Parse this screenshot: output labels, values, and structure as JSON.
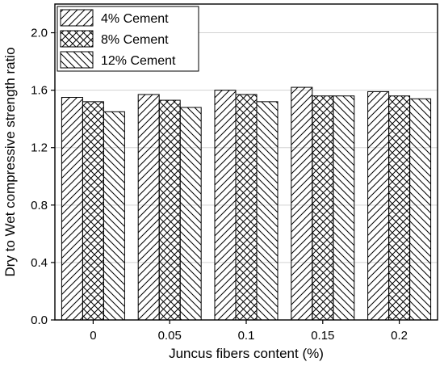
{
  "chart_data": {
    "type": "bar",
    "categories": [
      "0",
      "0.05",
      "0.1",
      "0.15",
      "0.2"
    ],
    "series": [
      {
        "name": "4% Cement",
        "values": [
          1.55,
          1.57,
          1.6,
          1.62,
          1.59
        ],
        "pattern": "diagonal-forward"
      },
      {
        "name": "8% Cement",
        "values": [
          1.52,
          1.53,
          1.57,
          1.56,
          1.56
        ],
        "pattern": "crosshatch"
      },
      {
        "name": "12% Cement",
        "values": [
          1.45,
          1.48,
          1.52,
          1.56,
          1.54
        ],
        "pattern": "diagonal-back"
      }
    ],
    "xlabel": "Juncus fibers content (%)",
    "ylabel": "Dry to Wet compressive strength ratio",
    "ylim": [
      0,
      2.2
    ],
    "yticks": [
      "0.0",
      "0.4",
      "0.8",
      "1.2",
      "1.6",
      "2.0"
    ],
    "grid": "horizontal",
    "legend_position": "top-left",
    "colors": {
      "stroke": "#000000",
      "fill": "#ffffff",
      "grid": "#d3d3d3"
    }
  }
}
